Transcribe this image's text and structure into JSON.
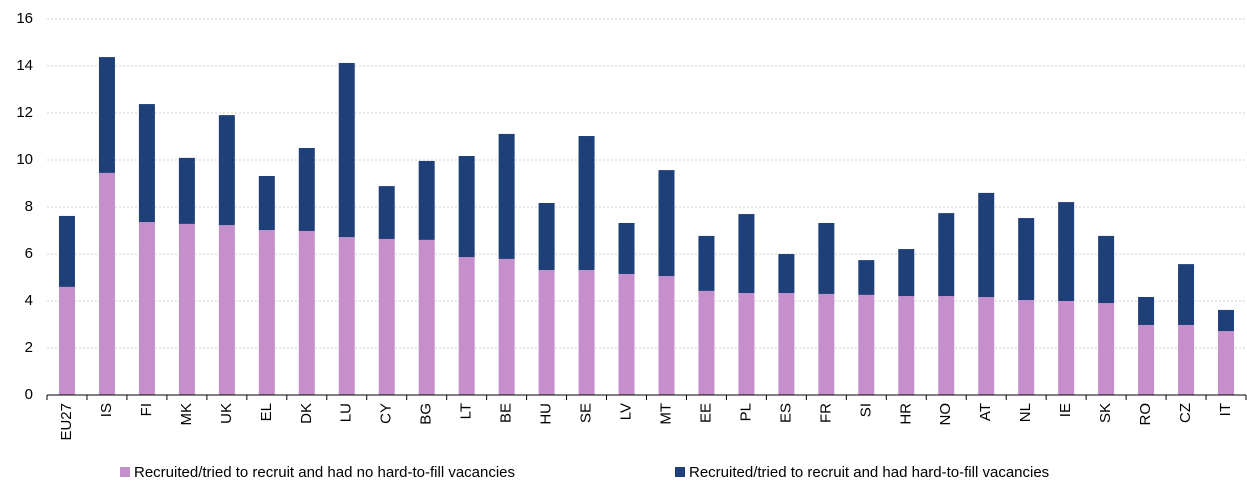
{
  "chart_data": {
    "type": "stacked_bar",
    "categories": [
      "EU27",
      "IS",
      "FI",
      "MK",
      "UK",
      "EL",
      "DK",
      "LU",
      "CY",
      "BG",
      "LT",
      "BE",
      "HU",
      "SE",
      "LV",
      "MT",
      "EE",
      "PL",
      "ES",
      "FR",
      "SI",
      "HR",
      "NO",
      "AT",
      "NL",
      "IE",
      "SK",
      "RO",
      "CZ",
      "IT"
    ],
    "series": [
      {
        "name": "Recruited/tried to recruit and had no hard-to-fill vacancies",
        "color": "#c48fca",
        "values": [
          4.6,
          9.45,
          7.36,
          7.28,
          7.23,
          7.02,
          6.98,
          6.72,
          6.64,
          6.6,
          5.87,
          5.79,
          5.32,
          5.32,
          5.15,
          5.06,
          4.43,
          4.34,
          4.34,
          4.3,
          4.26,
          4.21,
          4.21,
          4.17,
          4.04,
          4.0,
          3.91,
          2.98,
          2.98,
          2.72
        ]
      },
      {
        "name": "Recruited/tried to recruit and had hard-to-fill vacancies",
        "color": "#1f3f78",
        "values": [
          3.02,
          4.93,
          5.02,
          2.81,
          4.68,
          2.3,
          3.53,
          7.41,
          2.25,
          3.36,
          4.3,
          5.32,
          2.85,
          5.7,
          2.17,
          4.51,
          2.34,
          3.36,
          1.66,
          3.02,
          1.48,
          2.0,
          3.53,
          4.43,
          3.49,
          4.21,
          2.86,
          1.19,
          2.59,
          0.9
        ]
      }
    ],
    "ylim": [
      0,
      16
    ],
    "yticks": [
      0,
      2,
      4,
      6,
      8,
      10,
      12,
      14,
      16
    ],
    "grid": true
  }
}
